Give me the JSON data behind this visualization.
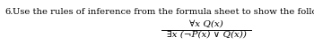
{
  "question_number": "6.",
  "question_text": "Use the rules of inference from the formula sheet to show the follow argument is valid:",
  "premise": "∀x Q(x)",
  "conclusion": "∃x (¬P(x) ∨ Q(x))",
  "bg_color": "#ffffff",
  "text_color": "#000000",
  "question_fontsize": 7.2,
  "logic_fontsize": 7.5,
  "figwidth": 3.5,
  "figheight": 0.51,
  "dpi": 100
}
